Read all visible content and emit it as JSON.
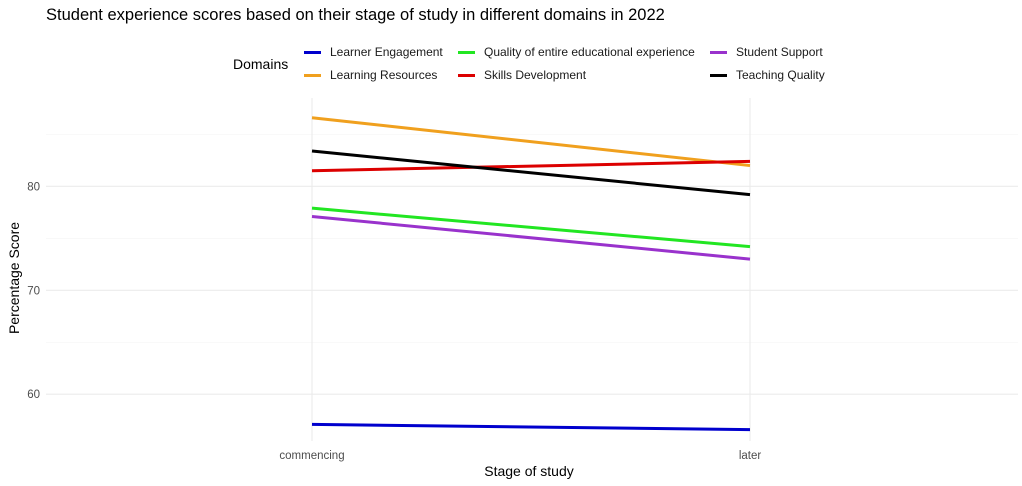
{
  "chart_data": {
    "type": "line",
    "title": "Student experience scores based on their stage of study in different domains in 2022",
    "xlabel": "Stage of study",
    "ylabel": "Percentage Score",
    "categories": [
      "commencing",
      "later"
    ],
    "yticks": [
      60,
      70,
      80
    ],
    "ylim": [
      55.5,
      88.5
    ],
    "grid": true,
    "legend": {
      "title": "Domains",
      "placement": "top"
    },
    "series": [
      {
        "name": "Learner Engagement",
        "color": "#0000cd",
        "values": [
          57.1,
          56.6
        ]
      },
      {
        "name": "Learning Resources",
        "color": "#f0a01e",
        "values": [
          86.6,
          82.0
        ]
      },
      {
        "name": "Quality of entire educational experience",
        "color": "#22e622",
        "values": [
          77.9,
          74.2
        ]
      },
      {
        "name": "Skills Development",
        "color": "#dc0000",
        "values": [
          81.5,
          82.4
        ]
      },
      {
        "name": "Student Support",
        "color": "#9932cc",
        "values": [
          77.1,
          73.0
        ]
      },
      {
        "name": "Teaching Quality",
        "color": "#000000",
        "values": [
          83.4,
          79.2
        ]
      }
    ]
  }
}
